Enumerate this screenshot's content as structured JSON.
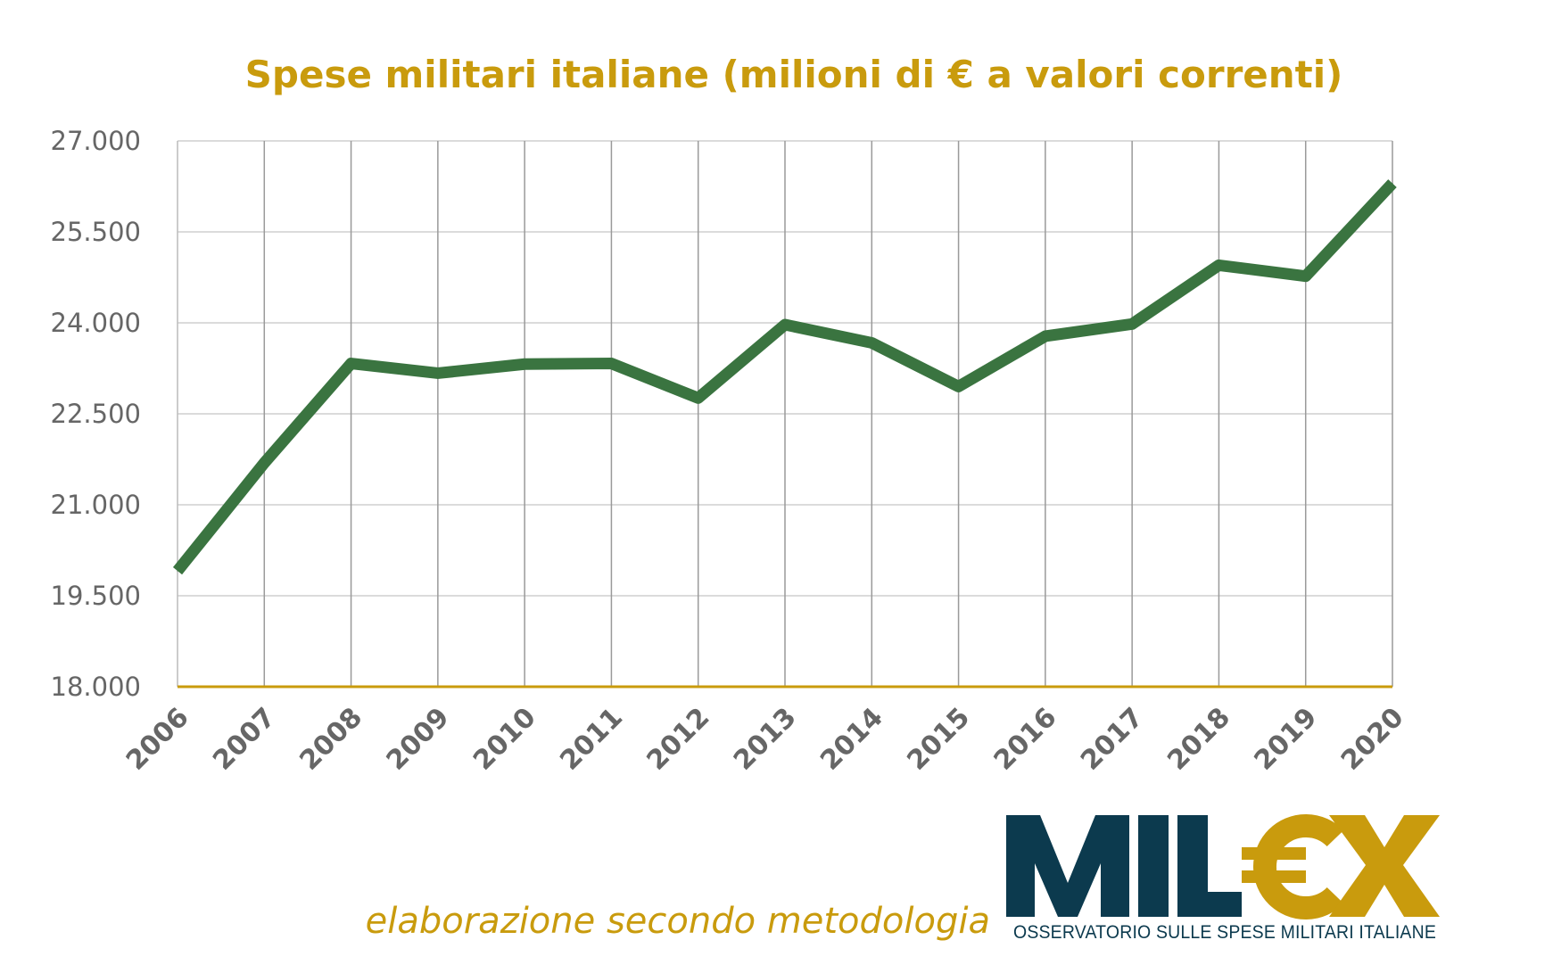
{
  "colors": {
    "title": "#c99b0d",
    "line": "#3a7440",
    "grid": "#cfcfcf",
    "xaxis": "#c99b0d",
    "tick": "#666666",
    "logo_dark": "#0c3a4e",
    "logo_gold": "#c99b0d"
  },
  "chart_data": {
    "type": "line",
    "title": "Spese militari italiane (milioni di € a valori correnti)",
    "xlabel": "",
    "ylabel": "",
    "categories": [
      "2006",
      "2007",
      "2008",
      "2009",
      "2010",
      "2011",
      "2012",
      "2013",
      "2014",
      "2015",
      "2016",
      "2017",
      "2018",
      "2019",
      "2020"
    ],
    "series": [
      {
        "values": [
          19910,
          21690,
          23330,
          23170,
          23320,
          23330,
          22760,
          23970,
          23670,
          22950,
          23780,
          23980,
          24950,
          24770,
          26300
        ]
      }
    ],
    "ylim": [
      18000,
      27000
    ],
    "yticks": [
      18000,
      19500,
      21000,
      22500,
      24000,
      25500,
      27000
    ],
    "ytick_labels": [
      "18.000",
      "19.500",
      "21.000",
      "22.500",
      "24.000",
      "25.500",
      "27.000"
    ],
    "grid": true,
    "legend": "none"
  },
  "footer": {
    "note": "elaborazione secondo metodologia"
  },
  "logo": {
    "text_dark": "MIL",
    "text_gold": "€X",
    "subtitle": "OSSERVATORIO SULLE SPESE MILITARI ITALIANE",
    "icon": "milex-logo"
  }
}
